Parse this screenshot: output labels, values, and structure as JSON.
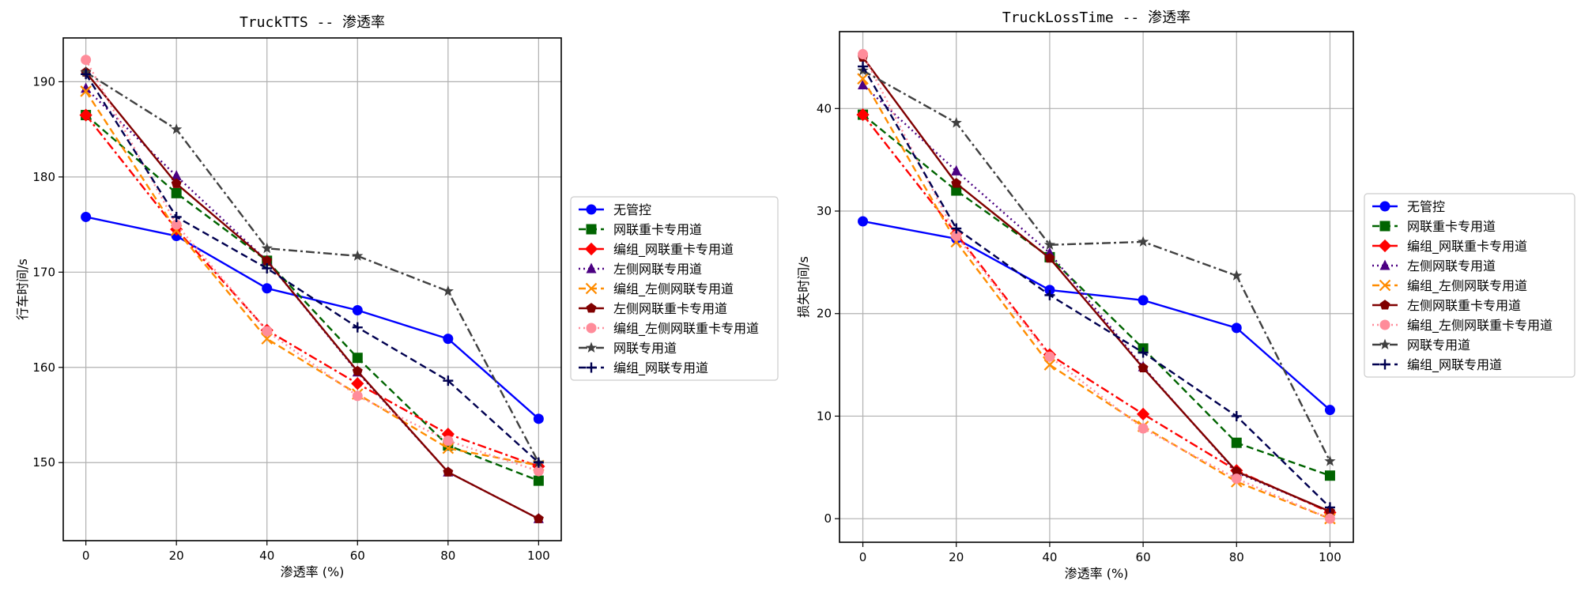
{
  "chart_data": [
    {
      "type": "line",
      "title": "TruckTTS -- 渗透率",
      "xlabel": "渗透率 (%)",
      "ylabel": "行车时间/s",
      "x": [
        0,
        20,
        40,
        60,
        80,
        100
      ],
      "xticks": [
        0,
        20,
        40,
        60,
        80,
        100
      ],
      "xlim": [
        -5,
        105
      ],
      "yticks": [
        150,
        160,
        170,
        180,
        190
      ],
      "ylim": [
        141.8,
        194.6
      ],
      "grid": true,
      "legend_position": "right-outside",
      "series": [
        {
          "name": "无管控",
          "color": "#0000ff",
          "dash": "solid",
          "marker": "circle",
          "values": [
            175.8,
            173.8,
            168.3,
            166.0,
            163.0,
            154.6
          ]
        },
        {
          "name": "网联重卡专用道",
          "color": "#006400",
          "dash": "dashed",
          "marker": "square",
          "values": [
            186.5,
            178.3,
            171.2,
            161.0,
            151.8,
            148.1
          ]
        },
        {
          "name": "编组_网联重卡专用道",
          "color": "#ff0000",
          "dash": "dashdot",
          "marker": "diamond",
          "values": [
            186.5,
            174.5,
            163.9,
            158.3,
            153.0,
            149.6
          ]
        },
        {
          "name": "左侧网联专用道",
          "color": "#4b0082",
          "dash": "dotted",
          "marker": "triangle",
          "values": [
            189.3,
            180.1,
            171.2,
            159.5,
            149.0,
            144.1
          ]
        },
        {
          "name": "编组_左侧网联专用道",
          "color": "#ff8c00",
          "dash": "dashed",
          "marker": "x",
          "values": [
            189.0,
            174.4,
            163.0,
            157.2,
            151.5,
            149.7
          ]
        },
        {
          "name": "左侧网联重卡专用道",
          "color": "#800000",
          "dash": "solid",
          "marker": "pentagon",
          "values": [
            191.0,
            179.3,
            171.2,
            159.6,
            149.0,
            144.1
          ]
        },
        {
          "name": "编组_左侧网联重卡专用道",
          "color": "#ff8c9a",
          "dash": "dotted",
          "marker": "octagon",
          "values": [
            192.3,
            175.0,
            163.8,
            157.0,
            152.3,
            149.1
          ]
        },
        {
          "name": "网联专用道",
          "color": "#404040",
          "dash": "dashdot",
          "marker": "star",
          "values": [
            191.0,
            185.0,
            172.5,
            171.7,
            168.0,
            150.0
          ]
        },
        {
          "name": "编组_网联专用道",
          "color": "#000050",
          "dash": "dashed",
          "marker": "plus",
          "values": [
            190.8,
            175.8,
            170.4,
            164.2,
            158.6,
            150.0
          ]
        }
      ]
    },
    {
      "type": "line",
      "title": "TruckLossTime -- 渗透率",
      "xlabel": "渗透率 (%)",
      "ylabel": "损失时间/s",
      "x": [
        0,
        20,
        40,
        60,
        80,
        100
      ],
      "xticks": [
        0,
        20,
        40,
        60,
        80,
        100
      ],
      "xlim": [
        -5,
        105
      ],
      "yticks": [
        0,
        10,
        20,
        30,
        40
      ],
      "ylim": [
        -2.3,
        47.5
      ],
      "grid": true,
      "legend_position": "right-outside",
      "series": [
        {
          "name": "无管控",
          "color": "#0000ff",
          "dash": "solid",
          "marker": "circle",
          "values": [
            29.0,
            27.3,
            22.3,
            21.3,
            18.6,
            10.6
          ]
        },
        {
          "name": "网联重卡专用道",
          "color": "#006400",
          "dash": "dashed",
          "marker": "square",
          "values": [
            39.4,
            32.0,
            25.5,
            16.6,
            7.4,
            4.2
          ]
        },
        {
          "name": "编组_网联重卡专用道",
          "color": "#ff0000",
          "dash": "dashdot",
          "marker": "diamond",
          "values": [
            39.4,
            27.8,
            16.0,
            10.2,
            4.7,
            0.6
          ]
        },
        {
          "name": "左侧网联专用道",
          "color": "#4b0082",
          "dash": "dotted",
          "marker": "triangle",
          "values": [
            42.3,
            33.9,
            25.9,
            14.8,
            4.5,
            0.7
          ]
        },
        {
          "name": "编组_左侧网联专用道",
          "color": "#ff8c00",
          "dash": "dashed",
          "marker": "x",
          "values": [
            42.9,
            27.0,
            15.0,
            9.0,
            3.6,
            0.0
          ]
        },
        {
          "name": "左侧网联重卡专用道",
          "color": "#800000",
          "dash": "solid",
          "marker": "pentagon",
          "values": [
            45.0,
            32.7,
            25.4,
            14.7,
            4.6,
            0.7
          ]
        },
        {
          "name": "编组_左侧网联重卡专用道",
          "color": "#ff8c9a",
          "dash": "dotted",
          "marker": "octagon",
          "values": [
            45.3,
            27.6,
            15.8,
            8.8,
            3.9,
            0.0
          ]
        },
        {
          "name": "网联专用道",
          "color": "#404040",
          "dash": "dashdot",
          "marker": "star",
          "values": [
            43.7,
            38.6,
            26.7,
            27.0,
            23.7,
            5.6
          ]
        },
        {
          "name": "编组_网联专用道",
          "color": "#000050",
          "dash": "dashed",
          "marker": "plus",
          "values": [
            44.1,
            28.3,
            21.8,
            16.2,
            10.0,
            1.1
          ]
        }
      ]
    }
  ]
}
